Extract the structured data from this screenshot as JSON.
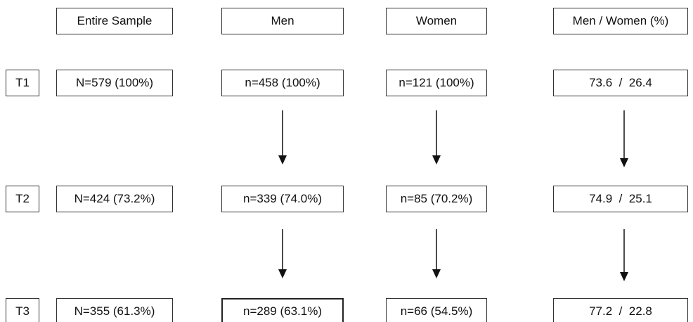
{
  "headers": {
    "entire_sample": "Entire Sample",
    "men": "Men",
    "women": "Women",
    "men_women_pct": "Men / Women (%)"
  },
  "rows": [
    {
      "time": "T1",
      "entire": "N=579 (100%)",
      "men": "n=458 (100%)",
      "women": "n=121 (100%)",
      "ratio": "73.6  /  26.4"
    },
    {
      "time": "T2",
      "entire": "N=424 (73.2%)",
      "men": "n=339 (74.0%)",
      "women": "n=85 (70.2%)",
      "ratio": "74.9  /  25.1"
    },
    {
      "time": "T3",
      "entire": "N=355 (61.3%)",
      "men": "n=289 (63.1%)",
      "women": "n=66 (54.5%)",
      "ratio": "77.2  /  22.8"
    }
  ]
}
